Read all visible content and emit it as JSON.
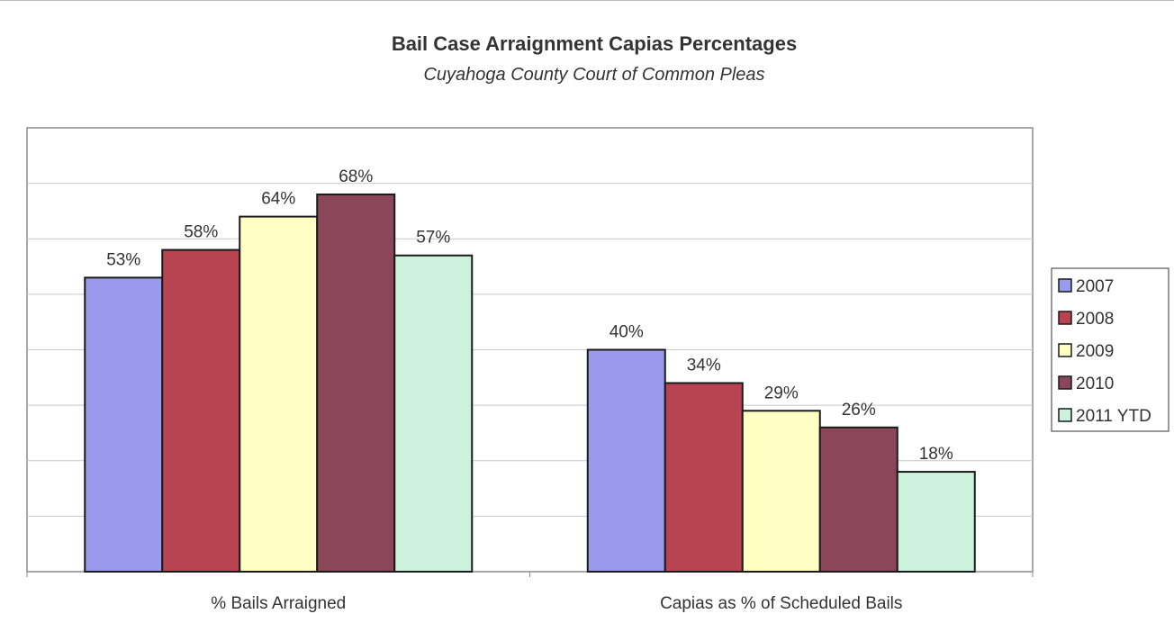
{
  "chart_data": {
    "type": "bar",
    "title": "Bail Case Arraignment Capias Percentages",
    "subtitle": "Cuyahoga County Court of Common Pleas",
    "categories": [
      "% Bails Arraigned",
      "Capias as % of Scheduled Bails"
    ],
    "series": [
      {
        "name": "2007",
        "values": [
          53,
          40
        ],
        "labels": [
          "53%",
          "40%"
        ],
        "color": "#9999ee"
      },
      {
        "name": "2008",
        "values": [
          58,
          34
        ],
        "labels": [
          "58%",
          "34%"
        ],
        "color": "#b84452"
      },
      {
        "name": "2009",
        "values": [
          64,
          29
        ],
        "labels": [
          "64%",
          "29%"
        ],
        "color": "#ffffc4"
      },
      {
        "name": "2010",
        "values": [
          68,
          26
        ],
        "labels": [
          "68%",
          "26%"
        ],
        "color": "#8b4659"
      },
      {
        "name": "2011 YTD",
        "values": [
          57,
          18
        ],
        "labels": [
          "57%",
          "18%"
        ],
        "color": "#ccf2dd"
      }
    ],
    "ylim": [
      0,
      80
    ],
    "grid": true,
    "legend": "right",
    "xlabel": "",
    "ylabel": ""
  }
}
